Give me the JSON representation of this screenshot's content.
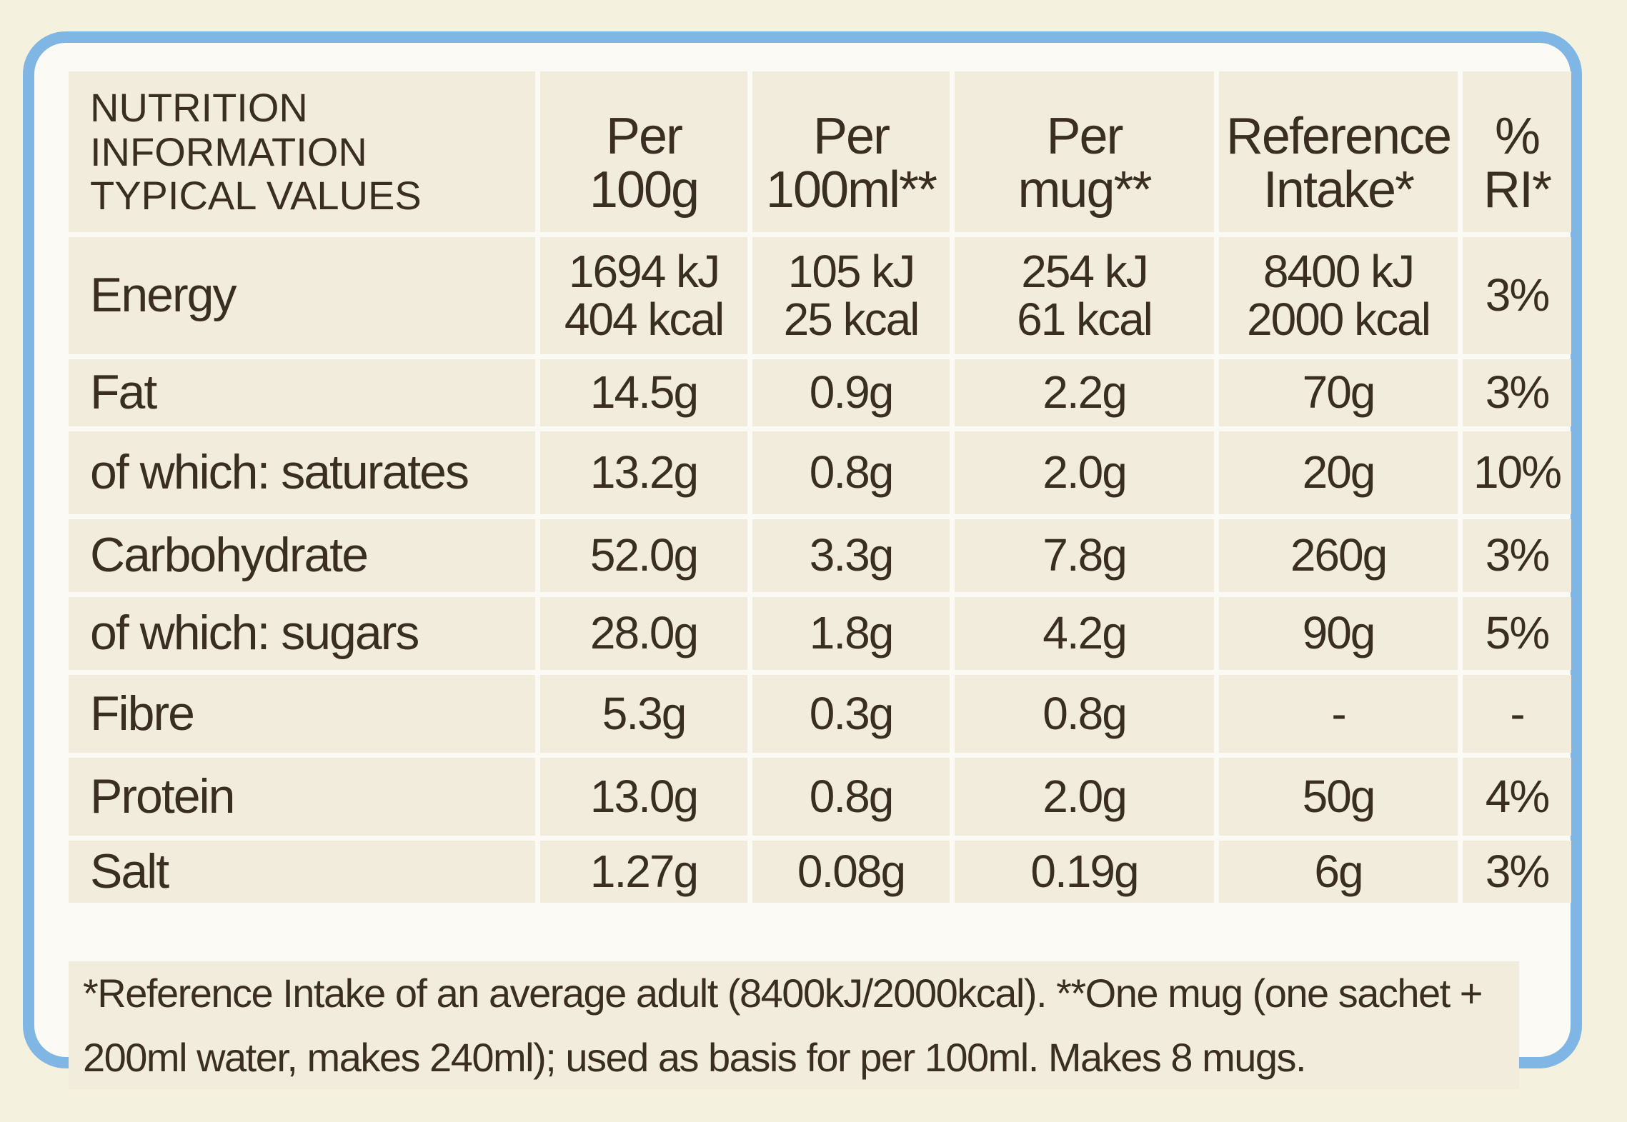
{
  "table": {
    "headers": [
      [
        "NUTRITION",
        "INFORMATION",
        "TYPICAL VALUES"
      ],
      [
        "Per",
        "100g"
      ],
      [
        "Per",
        "100ml**"
      ],
      [
        "Per",
        "mug**"
      ],
      [
        "Reference",
        "Intake*"
      ],
      [
        "%",
        "RI*"
      ]
    ],
    "rows": [
      {
        "label": "Energy",
        "cells": [
          [
            "1694 kJ",
            "404 kcal"
          ],
          [
            "105 kJ",
            "25 kcal"
          ],
          [
            "254 kJ",
            "61 kcal"
          ],
          [
            "8400 kJ",
            "2000 kcal"
          ],
          [
            "3%"
          ]
        ]
      },
      {
        "label": "Fat",
        "cells": [
          [
            "14.5g"
          ],
          [
            "0.9g"
          ],
          [
            "2.2g"
          ],
          [
            "70g"
          ],
          [
            "3%"
          ]
        ]
      },
      {
        "label": "of which: saturates",
        "cells": [
          [
            "13.2g"
          ],
          [
            "0.8g"
          ],
          [
            "2.0g"
          ],
          [
            "20g"
          ],
          [
            "10%"
          ]
        ]
      },
      {
        "label": "Carbohydrate",
        "cells": [
          [
            "52.0g"
          ],
          [
            "3.3g"
          ],
          [
            "7.8g"
          ],
          [
            "260g"
          ],
          [
            "3%"
          ]
        ]
      },
      {
        "label": "of which: sugars",
        "cells": [
          [
            "28.0g"
          ],
          [
            "1.8g"
          ],
          [
            "4.2g"
          ],
          [
            "90g"
          ],
          [
            "5%"
          ]
        ]
      },
      {
        "label": "Fibre",
        "cells": [
          [
            "5.3g"
          ],
          [
            "0.3g"
          ],
          [
            "0.8g"
          ],
          [
            "-"
          ],
          [
            "-"
          ]
        ]
      },
      {
        "label": "Protein",
        "cells": [
          [
            "13.0g"
          ],
          [
            "0.8g"
          ],
          [
            "2.0g"
          ],
          [
            "50g"
          ],
          [
            "4%"
          ]
        ]
      },
      {
        "label": "Salt",
        "cells": [
          [
            "1.27g"
          ],
          [
            "0.08g"
          ],
          [
            "0.19g"
          ],
          [
            "6g"
          ],
          [
            "3%"
          ]
        ]
      }
    ],
    "footnote": "*Reference Intake of an average adult (8400kJ/2000kcal). **One mug (one sachet + 200ml water, makes 240ml); used as basis for per 100ml. Makes 8 mugs."
  }
}
